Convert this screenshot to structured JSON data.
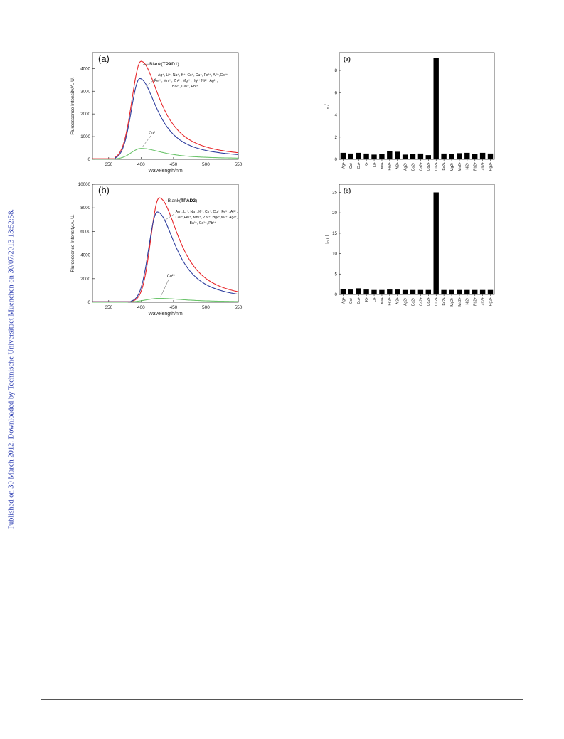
{
  "sidebar_text": "Published on 30 March 2012. Downloaded by Technische Universitaet Muenchen on 30/07/2013 13:52:58.",
  "spectra": [
    {
      "panel_label": "(a)",
      "ylabel": "Fluroescence Intensity/A. U.",
      "xlabel": "Wavelength/nm",
      "blank_prefix": "Blank(",
      "blank_bold": "TPAD1",
      "blank_suffix": ")",
      "ions_lines": [
        "Ag⁺, Li⁺, Na⁺, K⁺, Cs⁺, Cu⁺, Fe³⁺, Al³⁺,Co³⁺",
        "Fe²⁺, Mn²⁺, Zn²⁺, Mg²⁺, Hg²⁺,Ni²⁺, Ag²⁺,",
        "Ba²⁺, Ca²⁺, Pb²⁺"
      ],
      "cu_label": "Cu²⁺",
      "xlim": [
        325,
        550
      ],
      "ylim": [
        0,
        4700
      ],
      "xticks": [
        350,
        400,
        450,
        500,
        550
      ],
      "yticks": [
        0,
        1000,
        2000,
        3000,
        4000
      ],
      "series": [
        {
          "color": "#e8262a",
          "peak_x": 400,
          "peak_y": 4320,
          "onset": 360,
          "w_left": 14,
          "w_right": 36,
          "tail": 60
        },
        {
          "color": "#2f3f9e",
          "peak_x": 398,
          "peak_y": 3560,
          "onset": 360,
          "w_left": 13,
          "w_right": 34,
          "tail": 40
        },
        {
          "color": "#6cc46c",
          "peak_x": 400,
          "peak_y": 480,
          "onset": 360,
          "w_left": 15,
          "w_right": 42,
          "tail": 20
        }
      ]
    },
    {
      "panel_label": "(b)",
      "ylabel": "Fluroescence Intensity/A. U.",
      "xlabel": "Wavelength/nm",
      "blank_prefix": "Blank(",
      "blank_bold": "TPAD2",
      "blank_suffix": ")",
      "ions_lines": [
        "Ag⁺, Li⁺, Na⁺, K⁺, Cs⁺, Cu⁺, Fe³⁺, Al³⁺,",
        "Co³⁺,Fe²⁺, Mn²⁺, Zn²⁺, Hg²⁺,Ni²⁺, Ag²⁺,",
        "Ba²⁺, Ca²⁺, Pb²⁺"
      ],
      "cu_label": "Cu²⁺",
      "xlim": [
        325,
        550
      ],
      "ylim": [
        0,
        10000
      ],
      "xticks": [
        350,
        400,
        450,
        500,
        550
      ],
      "yticks": [
        0,
        2000,
        4000,
        6000,
        8000,
        10000
      ],
      "series": [
        {
          "color": "#e8262a",
          "peak_x": 428,
          "peak_y": 8850,
          "onset": 385,
          "w_left": 13,
          "w_right": 38,
          "tail": 120
        },
        {
          "color": "#2f3f9e",
          "peak_x": 425,
          "peak_y": 7650,
          "onset": 385,
          "w_left": 13,
          "w_right": 36,
          "tail": 100
        },
        {
          "color": "#6cc46c",
          "peak_x": 428,
          "peak_y": 330,
          "onset": 380,
          "w_left": 20,
          "w_right": 50,
          "tail": 20
        }
      ]
    }
  ],
  "ratios": [
    {
      "panel_label": "(a)",
      "ylabel": "I₀ / I",
      "ylim": [
        0,
        9.6
      ],
      "yticks": [
        0,
        2,
        4,
        6,
        8
      ],
      "categories": [
        "Ag+",
        "Cs+",
        "Cu+",
        "K+",
        "Li+",
        "Na+",
        "Fe3+",
        "Al3+",
        "Ag2+",
        "Ba2+",
        "Ca2+",
        "Co2+",
        "Cu2+",
        "Fe2+",
        "Mg2+",
        "Mn2+",
        "Ni2+",
        "Pb2+",
        "Zn2+",
        "Hg2+"
      ],
      "values": [
        0.58,
        0.52,
        0.58,
        0.52,
        0.42,
        0.45,
        0.72,
        0.68,
        0.42,
        0.48,
        0.52,
        0.38,
        9.1,
        0.52,
        0.5,
        0.55,
        0.58,
        0.5,
        0.58,
        0.52
      ]
    },
    {
      "panel_label": "(b)",
      "ylabel": "I₀ / I",
      "ylim": [
        0,
        27
      ],
      "yticks": [
        0,
        5,
        10,
        15,
        20,
        25
      ],
      "categories": [
        "Ag+",
        "Cs+",
        "Cu+",
        "K+",
        "Li+",
        "Na+",
        "Fe3+",
        "Al3+",
        "Ag2+",
        "Ba2+",
        "Ca2+",
        "Co2+",
        "Cu2+",
        "Fe2+",
        "Mg2+",
        "Mn2+",
        "Ni2+",
        "Pb2+",
        "Zn2+",
        "Hg2+"
      ],
      "values": [
        1.3,
        1.2,
        1.5,
        1.2,
        1.1,
        1.1,
        1.2,
        1.2,
        1.1,
        1.1,
        1.1,
        1.1,
        25.0,
        1.1,
        1.1,
        1.1,
        1.1,
        1.1,
        1.1,
        1.1
      ]
    }
  ]
}
